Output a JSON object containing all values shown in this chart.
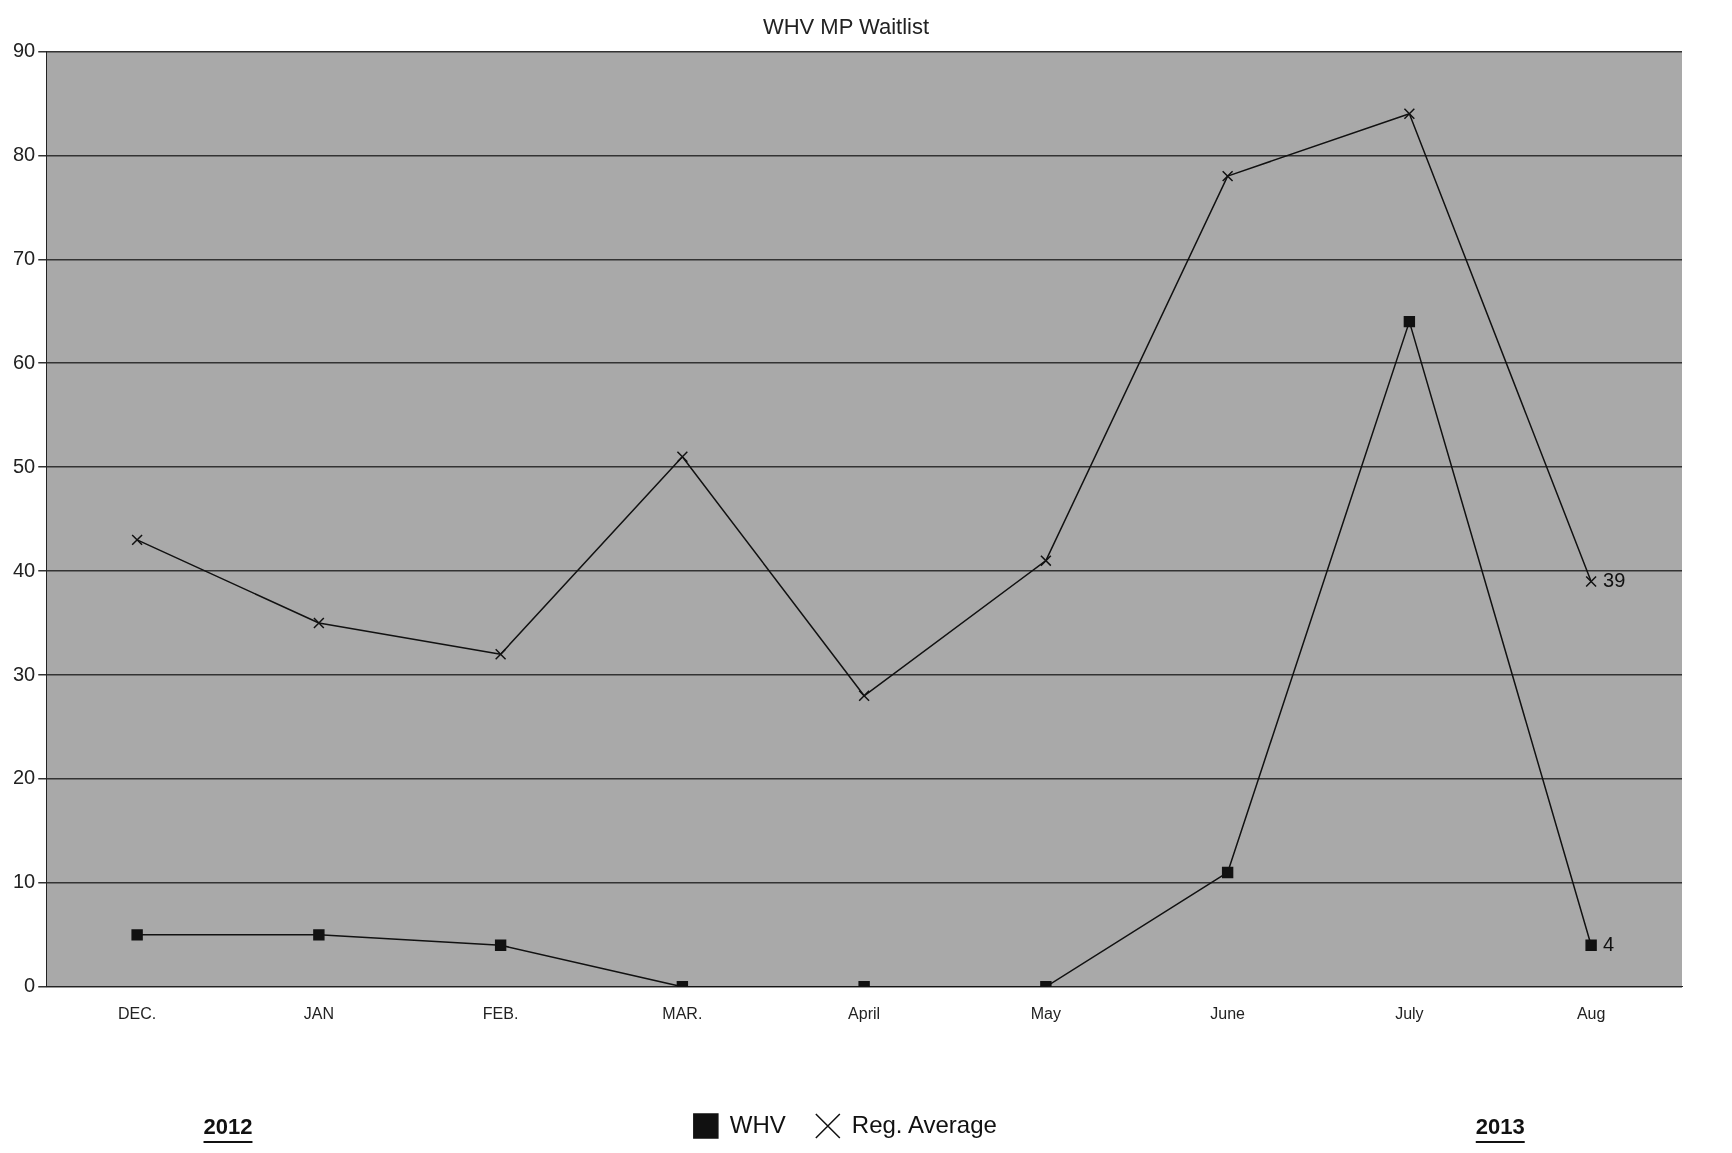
{
  "chart_data": {
    "type": "line",
    "title": "WHV MP Waitlist",
    "categories": [
      "DEC.",
      "JAN",
      "FEB.",
      "MAR.",
      "April",
      "May",
      "June",
      "July",
      "Aug"
    ],
    "series": [
      {
        "name": "WHV",
        "color": "#111111",
        "marker": "square",
        "values": [
          5,
          5,
          4,
          0,
          0,
          0,
          11,
          64,
          4
        ],
        "value_labels": [
          null,
          null,
          null,
          null,
          null,
          null,
          null,
          null,
          "4"
        ]
      },
      {
        "name": "Reg. Average",
        "color": "#111111",
        "marker": "cross",
        "values": [
          43,
          35,
          32,
          51,
          28,
          41,
          78,
          84,
          39
        ],
        "value_labels": [
          null,
          null,
          null,
          null,
          null,
          null,
          null,
          null,
          "39"
        ]
      }
    ],
    "ylim": [
      0,
      90
    ],
    "yticks": [
      0,
      10,
      20,
      30,
      40,
      50,
      60,
      70,
      80,
      90
    ],
    "grid": "y",
    "legend": "bottom",
    "annotations": [
      "2012",
      "2013"
    ]
  }
}
